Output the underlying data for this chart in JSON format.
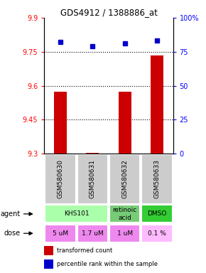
{
  "title": "GDS4912 / 1388886_at",
  "samples": [
    "GSM580630",
    "GSM580631",
    "GSM580632",
    "GSM580633"
  ],
  "bar_values": [
    9.575,
    9.305,
    9.575,
    9.735
  ],
  "bar_base": 9.3,
  "percentile_values": [
    82,
    79,
    81,
    83
  ],
  "ylim_left": [
    9.3,
    9.9
  ],
  "ylim_right": [
    0,
    100
  ],
  "yticks_left": [
    9.3,
    9.45,
    9.6,
    9.75,
    9.9
  ],
  "yticks_right": [
    0,
    25,
    50,
    75,
    100
  ],
  "ytick_labels_left": [
    "9.3",
    "9.45",
    "9.6",
    "9.75",
    "9.9"
  ],
  "ytick_labels_right": [
    "0",
    "25",
    "50",
    "75",
    "100%"
  ],
  "hlines": [
    9.45,
    9.6,
    9.75
  ],
  "bar_color": "#cc0000",
  "dot_color": "#0000cc",
  "agent_row": [
    {
      "label": "KHS101",
      "span": [
        0,
        2
      ],
      "color": "#aaffaa"
    },
    {
      "label": "retinoic\nacid",
      "span": [
        2,
        3
      ],
      "color": "#77cc77"
    },
    {
      "label": "DMSO",
      "span": [
        3,
        4
      ],
      "color": "#33cc33"
    }
  ],
  "dose_row": [
    {
      "label": "5 uM",
      "span": [
        0,
        1
      ],
      "color": "#ee88ee"
    },
    {
      "label": "1.7 uM",
      "span": [
        1,
        2
      ],
      "color": "#ee88ee"
    },
    {
      "label": "1 uM",
      "span": [
        2,
        3
      ],
      "color": "#ee88ee"
    },
    {
      "label": "0.1 %",
      "span": [
        3,
        4
      ],
      "color": "#ffbbff"
    }
  ],
  "sample_bg": "#cccccc",
  "legend_red": "transformed count",
  "legend_blue": "percentile rank within the sample"
}
